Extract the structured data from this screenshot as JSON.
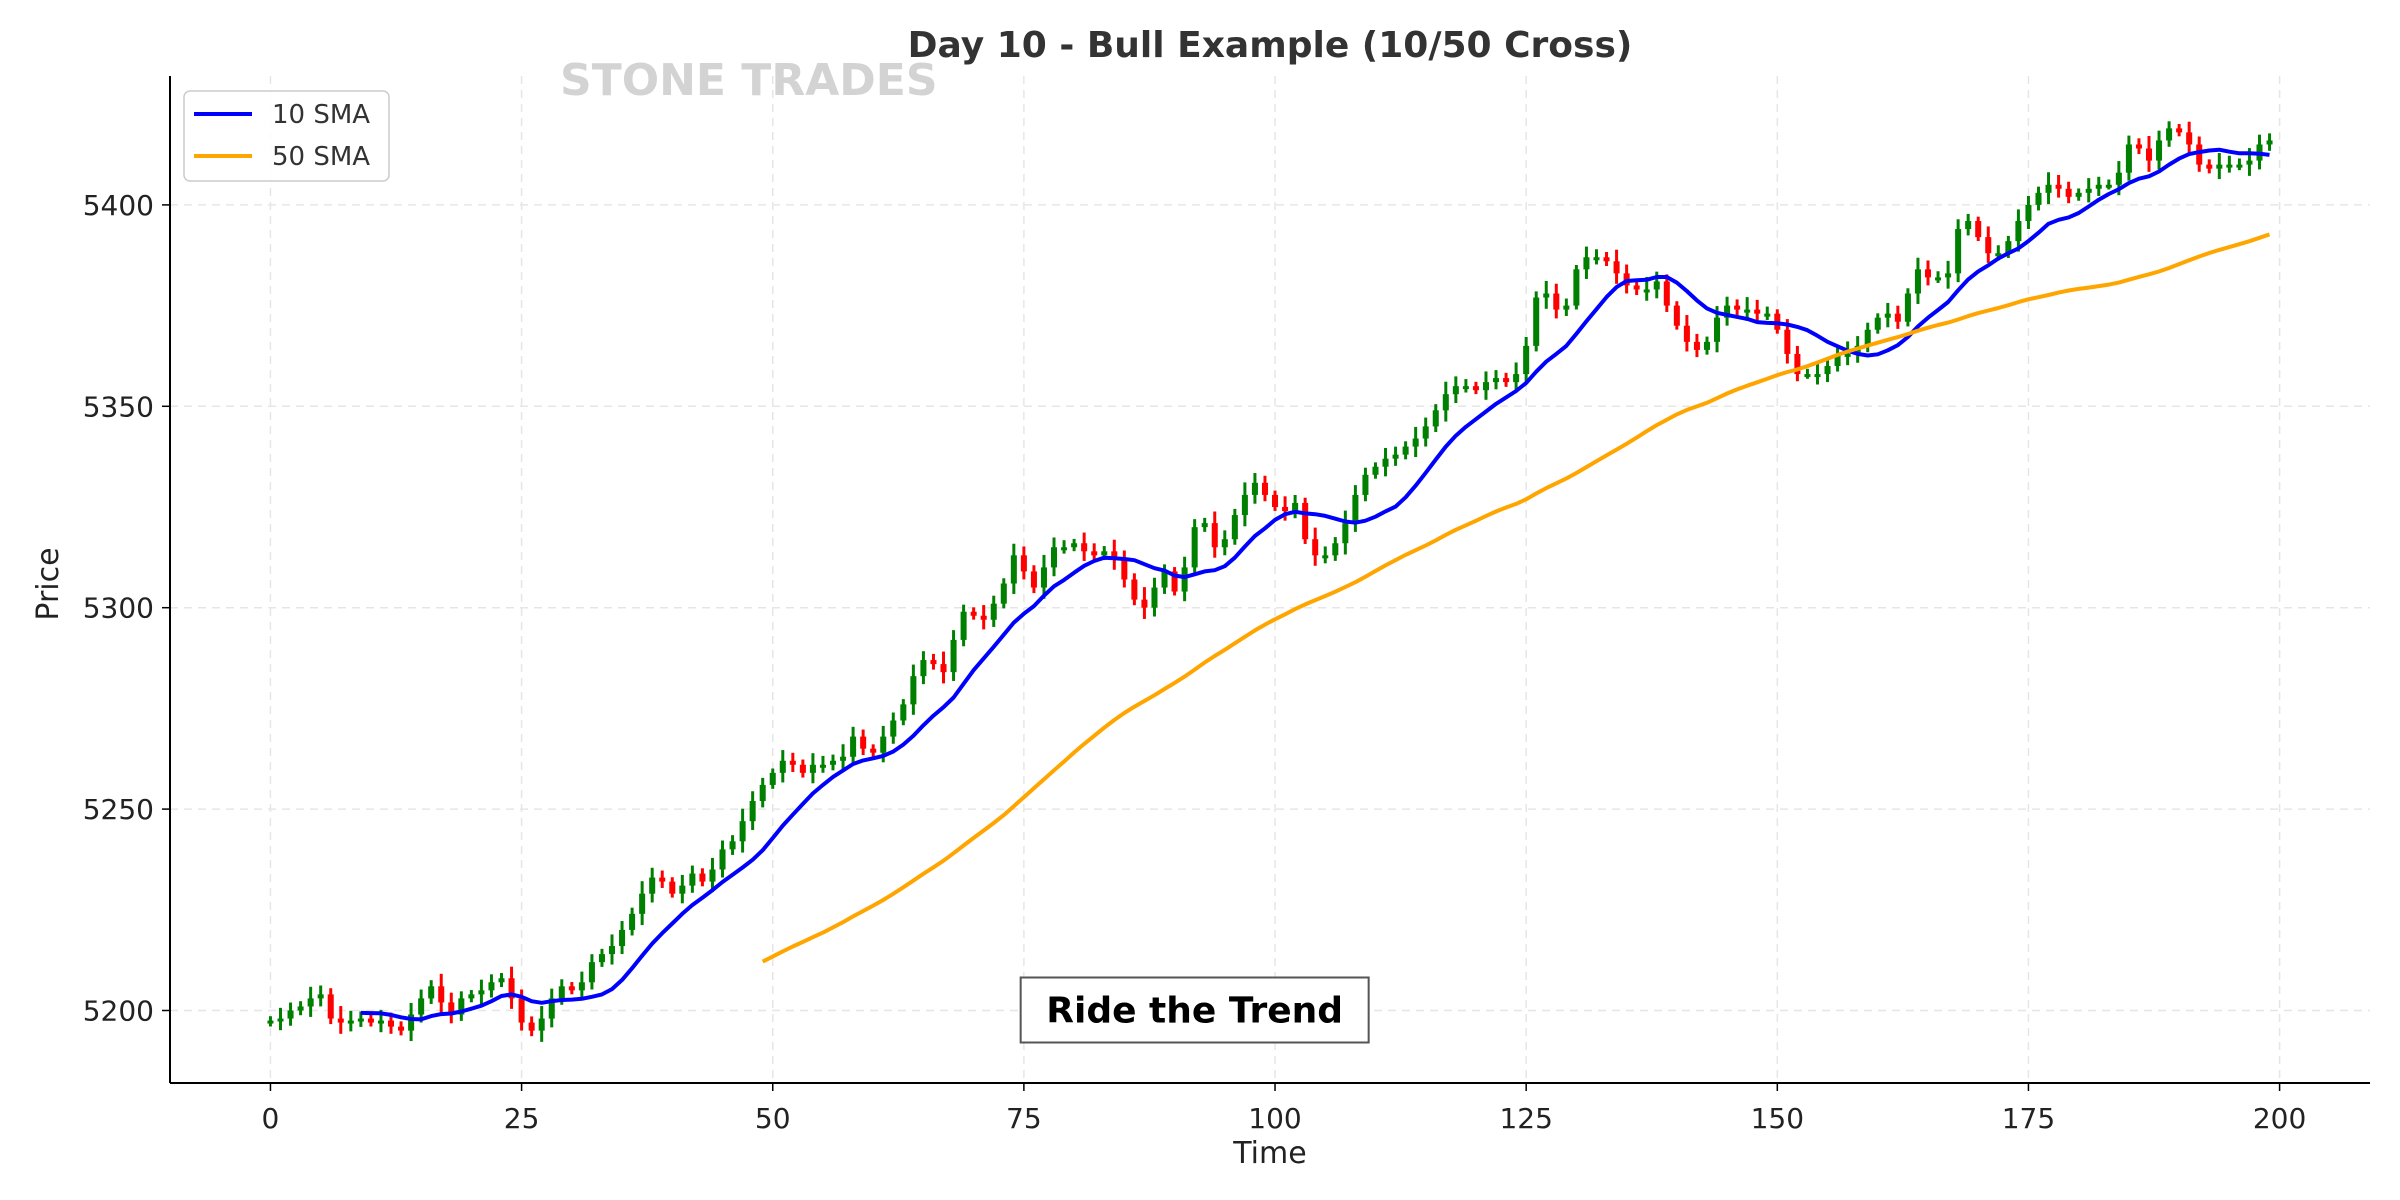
{
  "chart_data": {
    "type": "candlestick",
    "title": "Day 10 - Bull Example (10/50 Cross)",
    "watermark": "STONE TRADES",
    "xlabel": "Time",
    "ylabel": "Price",
    "xlim": [
      -10,
      209
    ],
    "ylim": [
      5182,
      5432
    ],
    "xticks": [
      0,
      25,
      50,
      75,
      100,
      125,
      150,
      175,
      200
    ],
    "yticks": [
      5200,
      5250,
      5300,
      5350,
      5400
    ],
    "grid": true,
    "legend": {
      "placement": "top-left",
      "entries": [
        {
          "label": "10 SMA",
          "color": "#0000ff",
          "window": 10
        },
        {
          "label": "50 SMA",
          "color": "#ffa500",
          "window": 50
        }
      ]
    },
    "annotation": {
      "text": "Ride the Trend",
      "x": 92,
      "y": 5200
    },
    "up_color": "#008000",
    "down_color": "#ff0000",
    "first_open": 5197,
    "wick_points": 1.8,
    "close": [
      5197.5,
      5198,
      5200,
      5201,
      5203,
      5204,
      5198,
      5197,
      5197.5,
      5198,
      5197,
      5197.5,
      5196,
      5195,
      5199,
      5203,
      5206,
      5202,
      5199,
      5203,
      5204,
      5205,
      5207,
      5208,
      5203,
      5197,
      5195,
      5198,
      5203,
      5206,
      5205,
      5207,
      5212,
      5214,
      5216,
      5220,
      5224,
      5229,
      5233,
      5232,
      5229,
      5231,
      5234,
      5232,
      5235,
      5240,
      5242,
      5247,
      5252,
      5256,
      5259,
      5262,
      5261,
      5259,
      5261,
      5261,
      5262,
      5263,
      5268,
      5265,
      5264,
      5268,
      5272,
      5276,
      5283,
      5287,
      5286,
      5284,
      5292,
      5299,
      5298,
      5297,
      5301,
      5306,
      5313,
      5309,
      5305,
      5310,
      5315,
      5315,
      5316,
      5314,
      5313,
      5314,
      5312,
      5307,
      5302,
      5300,
      5305,
      5309,
      5304,
      5310,
      5320,
      5321,
      5315,
      5317,
      5323,
      5328,
      5331,
      5328,
      5325,
      5324,
      5326,
      5317,
      5313,
      5313,
      5316,
      5321,
      5328,
      5333,
      5335,
      5337,
      5338,
      5340,
      5342,
      5345,
      5349,
      5353,
      5355,
      5355,
      5354,
      5356,
      5357,
      5356,
      5358,
      5365,
      5377,
      5378,
      5374,
      5375,
      5384,
      5387,
      5387,
      5386,
      5383,
      5380,
      5379,
      5379,
      5381,
      5375,
      5370,
      5366,
      5364,
      5366,
      5372,
      5375,
      5374,
      5374,
      5373,
      5373,
      5369,
      5363,
      5358,
      5358,
      5358,
      5360,
      5363,
      5363,
      5365,
      5369,
      5372,
      5373,
      5371,
      5378,
      5384,
      5382,
      5382,
      5383,
      5394,
      5396,
      5392,
      5388,
      5388,
      5391,
      5396,
      5400,
      5403,
      5405,
      5404,
      5402,
      5403,
      5404,
      5405,
      5405,
      5408,
      5415,
      5414,
      5411,
      5416,
      5419,
      5418,
      5415,
      5410,
      5409,
      5410,
      5410,
      5410,
      5411,
      5415,
      5416
    ]
  }
}
